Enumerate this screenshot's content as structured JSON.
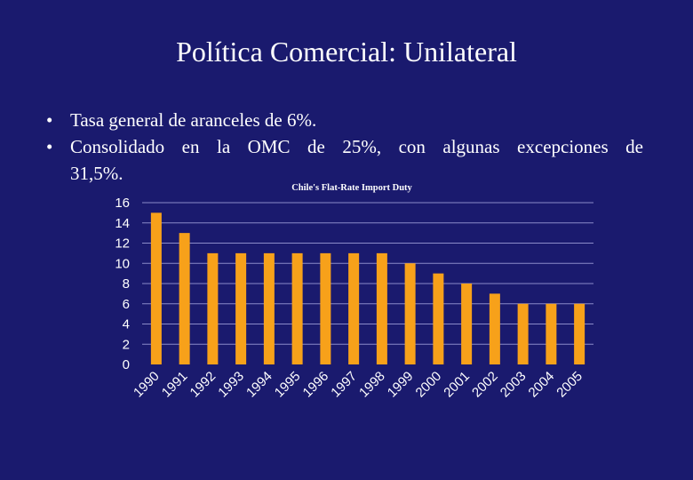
{
  "slide": {
    "title": "Política Comercial:  Unilateral",
    "bullet_marker": "•",
    "bullets": [
      {
        "line1": "Tasa general de aranceles de 6%."
      },
      {
        "line1": "Consolidado en la OMC de 25%, con algunas excepciones de",
        "line2": "31,5%."
      }
    ]
  },
  "colors": {
    "background": "#1a1a6e",
    "bar": "#f7a11a",
    "gridline": "#8a8ac8",
    "text": "#ffffff"
  },
  "chart_data": {
    "type": "bar",
    "title": "Chile's Flat-Rate Import Duty",
    "xlabel": "",
    "ylabel": "",
    "categories": [
      "1990",
      "1991",
      "1992",
      "1993",
      "1994",
      "1995",
      "1996",
      "1997",
      "1998",
      "1999",
      "2000",
      "2001",
      "2002",
      "2003",
      "2004",
      "2005"
    ],
    "values": [
      15,
      13,
      11,
      11,
      11,
      11,
      11,
      11,
      11,
      10,
      9,
      8,
      7,
      6,
      6,
      6
    ],
    "ylim": [
      0,
      16
    ],
    "yticks": [
      0,
      2,
      4,
      6,
      8,
      10,
      12,
      14,
      16
    ],
    "grid": true,
    "legend": "none"
  }
}
